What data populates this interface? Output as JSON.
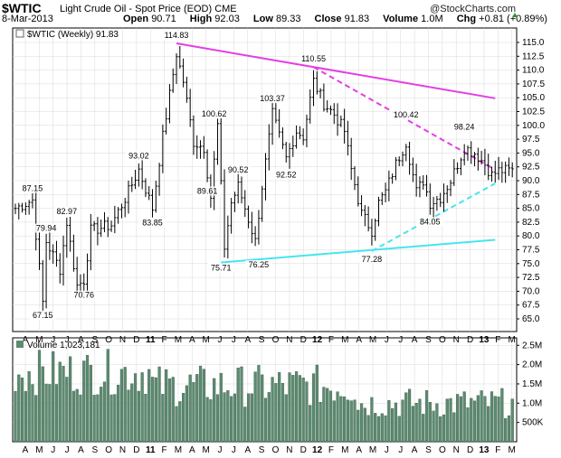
{
  "header": {
    "symbol": "$WTIC",
    "description": "Light Crude Oil - Spot Price (EOD)",
    "exchange": "CME",
    "brand": "@StockCharts.com",
    "date": "8-Mar-2013",
    "open_label": "Open",
    "open_value": "90.71",
    "high_label": "High",
    "high_value": "92.03",
    "low_label": "Low",
    "low_value": "89.33",
    "close_label": "Close",
    "close_value": "91.83",
    "volume_label": "Volume",
    "volume_value": "1.0M",
    "chg_label": "Chg",
    "chg_value": "+0.81 (+0.89%)",
    "chg_icon": "triangle-up-icon"
  },
  "chart_data": {
    "type": "ohlc-bar",
    "price_legend": "$WTIC (Weekly) 91.83",
    "volume_legend": "Volume 1,023,181",
    "ylim": [
      65,
      115
    ],
    "y_ticks": [
      65.0,
      67.5,
      70.0,
      72.5,
      75.0,
      77.5,
      80.0,
      82.5,
      85.0,
      87.5,
      90.0,
      92.5,
      95.0,
      97.5,
      100.0,
      102.5,
      105.0,
      107.5,
      110.0,
      112.5,
      115.0
    ],
    "volume_ticks": [
      "2.5M",
      "2.0M",
      "1.5M",
      "1.0M",
      "500K"
    ],
    "volume_tick_values": [
      2500000,
      2000000,
      1500000,
      1000000,
      500000
    ],
    "volume_ylim": [
      0,
      2600000
    ],
    "x_tick_labels": [
      "A",
      "M",
      "J",
      "J",
      "A",
      "S",
      "O",
      "N",
      "D",
      "11",
      "F",
      "M",
      "A",
      "M",
      "J",
      "J",
      "A",
      "S",
      "O",
      "N",
      "D",
      "12",
      "F",
      "M",
      "A",
      "M",
      "J",
      "J",
      "A",
      "S",
      "O",
      "N",
      "D",
      "13",
      "F",
      "M"
    ],
    "year_labels": [
      "11",
      "12",
      "13"
    ],
    "annotations": [
      {
        "text": "87.15",
        "bar": 5,
        "value": 87.15,
        "pos": "above"
      },
      {
        "text": "79.94",
        "bar": 9,
        "value": 79.94,
        "pos": "above"
      },
      {
        "text": "82.97",
        "bar": 15,
        "value": 82.97,
        "pos": "above"
      },
      {
        "text": "67.15",
        "bar": 8,
        "value": 67.15,
        "pos": "below"
      },
      {
        "text": "70.76",
        "bar": 20,
        "value": 70.76,
        "pos": "below"
      },
      {
        "text": "93.02",
        "bar": 36,
        "value": 93.02,
        "pos": "above"
      },
      {
        "text": "83.85",
        "bar": 40,
        "value": 83.85,
        "pos": "below"
      },
      {
        "text": "114.83",
        "bar": 47,
        "value": 114.83,
        "pos": "above"
      },
      {
        "text": "100.62",
        "bar": 58,
        "value": 100.62,
        "pos": "above"
      },
      {
        "text": "89.61",
        "bar": 56,
        "value": 89.61,
        "pos": "below"
      },
      {
        "text": "90.52",
        "bar": 65,
        "value": 90.52,
        "pos": "above"
      },
      {
        "text": "75.71",
        "bar": 60,
        "value": 75.71,
        "pos": "below"
      },
      {
        "text": "76.25",
        "bar": 71,
        "value": 76.25,
        "pos": "below"
      },
      {
        "text": "103.37",
        "bar": 75,
        "value": 103.37,
        "pos": "above"
      },
      {
        "text": "92.52",
        "bar": 79,
        "value": 92.52,
        "pos": "below"
      },
      {
        "text": "110.55",
        "bar": 87,
        "value": 110.55,
        "pos": "above"
      },
      {
        "text": "77.28",
        "bar": 104,
        "value": 77.28,
        "pos": "below"
      },
      {
        "text": "100.42",
        "bar": 114,
        "value": 100.42,
        "pos": "above"
      },
      {
        "text": "84.05",
        "bar": 121,
        "value": 84.05,
        "pos": "below"
      },
      {
        "text": "98.24",
        "bar": 131,
        "value": 98.24,
        "pos": "above"
      }
    ],
    "trendlines": [
      {
        "from": [
          47,
          114.83
        ],
        "to": [
          140,
          104.9
        ],
        "color": "#e43ee4",
        "style": "solid"
      },
      {
        "from": [
          87,
          110.55
        ],
        "to": [
          140,
          92.0
        ],
        "color": "#e43ee4",
        "style": "dashed"
      },
      {
        "from": [
          60,
          75.2
        ],
        "to": [
          140,
          79.3
        ],
        "color": "#45e5ee",
        "style": "solid"
      },
      {
        "from": [
          104,
          77.28
        ],
        "to": [
          140,
          89.5
        ],
        "color": "#45e5ee",
        "style": "dashed"
      }
    ],
    "colors": {
      "bars": "#000000",
      "volume": "#5c8b70",
      "volume_edge": "#3c604c",
      "resistance": "#e43ee4",
      "support": "#45e5ee",
      "grid": "#d8d8d8"
    }
  }
}
